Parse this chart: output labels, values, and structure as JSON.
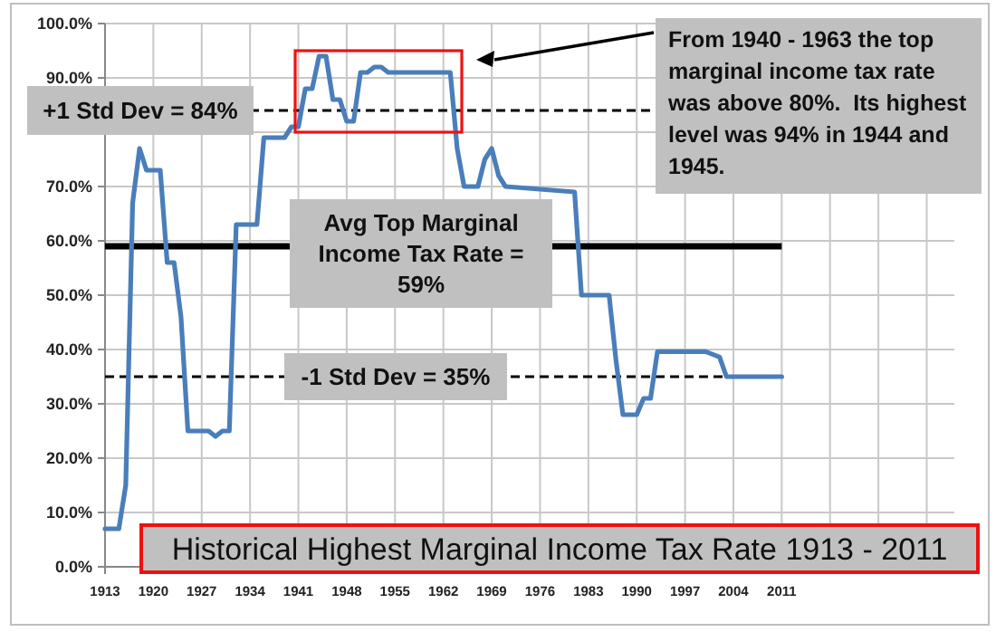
{
  "chart_data": {
    "type": "line",
    "title": "Historical Highest Marginal Income Tax Rate 1913 - 2011",
    "x": [
      1913,
      1915,
      1916,
      1917,
      1918,
      1919,
      1921,
      1922,
      1923,
      1924,
      1925,
      1928,
      1929,
      1930,
      1931,
      1932,
      1935,
      1936,
      1939,
      1940,
      1941,
      1942,
      1943,
      1944,
      1945,
      1946,
      1947,
      1948,
      1949,
      1950,
      1951,
      1952,
      1953,
      1954,
      1963,
      1964,
      1965,
      1967,
      1968,
      1969,
      1970,
      1971,
      1981,
      1982,
      1986,
      1987,
      1988,
      1990,
      1991,
      1992,
      1993,
      2000,
      2001,
      2002,
      2003,
      2011
    ],
    "series": [
      {
        "color": "#4a7ebb",
        "values": [
          7,
          7,
          15,
          67,
          77,
          73,
          73,
          56,
          56,
          46,
          25,
          25,
          24,
          25,
          25,
          63,
          63,
          79,
          79,
          81,
          81,
          88,
          88,
          94,
          94,
          86,
          86,
          82,
          82,
          91,
          91,
          92,
          92,
          91,
          91,
          77,
          70,
          70,
          75,
          77,
          72,
          70,
          69,
          50,
          50,
          38,
          28,
          28,
          31,
          31,
          39.6,
          39.6,
          39.1,
          38.6,
          35,
          35
        ]
      }
    ],
    "xlim": [
      1913,
      2036
    ],
    "xticks": [
      1913,
      1920,
      1927,
      1934,
      1941,
      1948,
      1955,
      1962,
      1969,
      1976,
      1983,
      1990,
      1997,
      2004,
      2011,
      {
        "value": 2018,
        "label": null
      },
      {
        "value": 2025,
        "label": null
      },
      {
        "value": 2032,
        "label": null
      }
    ],
    "ylim": [
      0,
      100
    ],
    "yticks": [
      {
        "value": 0,
        "label": "0.0%"
      },
      {
        "value": 10,
        "label": "10.0%"
      },
      {
        "value": 20,
        "label": "20.0%"
      },
      {
        "value": 30,
        "label": "30.0%"
      },
      {
        "value": 40,
        "label": "40.0%"
      },
      {
        "value": 50,
        "label": "50.0%"
      },
      {
        "value": 60,
        "label": "60.0%"
      },
      {
        "value": 70,
        "label": "70.0%"
      },
      {
        "value": 80,
        "label": null
      },
      {
        "value": 90,
        "label": "90.0%"
      },
      {
        "value": 100,
        "label": "100.0%"
      }
    ],
    "grid": true,
    "marker": "none",
    "line_style": "solid",
    "ref_lines": [
      {
        "axis": "y",
        "value": 84,
        "label": "+1 Std Dev = 84%",
        "line_style": "dashed",
        "color": "#000000"
      },
      {
        "axis": "y",
        "value": 59,
        "label": "Avg Top Marginal Income Tax Rate = 59%",
        "line_style": "solid",
        "color": "#000000"
      },
      {
        "axis": "y",
        "value": 35,
        "label": "-1 Std Dev = 35%",
        "line_style": "dashed",
        "color": "#000000"
      }
    ],
    "annotations": [
      "From 1940 - 1963 the top marginal income tax rate was above 80%.  Its highest level was 94% in 1944 and 1945."
    ]
  }
}
